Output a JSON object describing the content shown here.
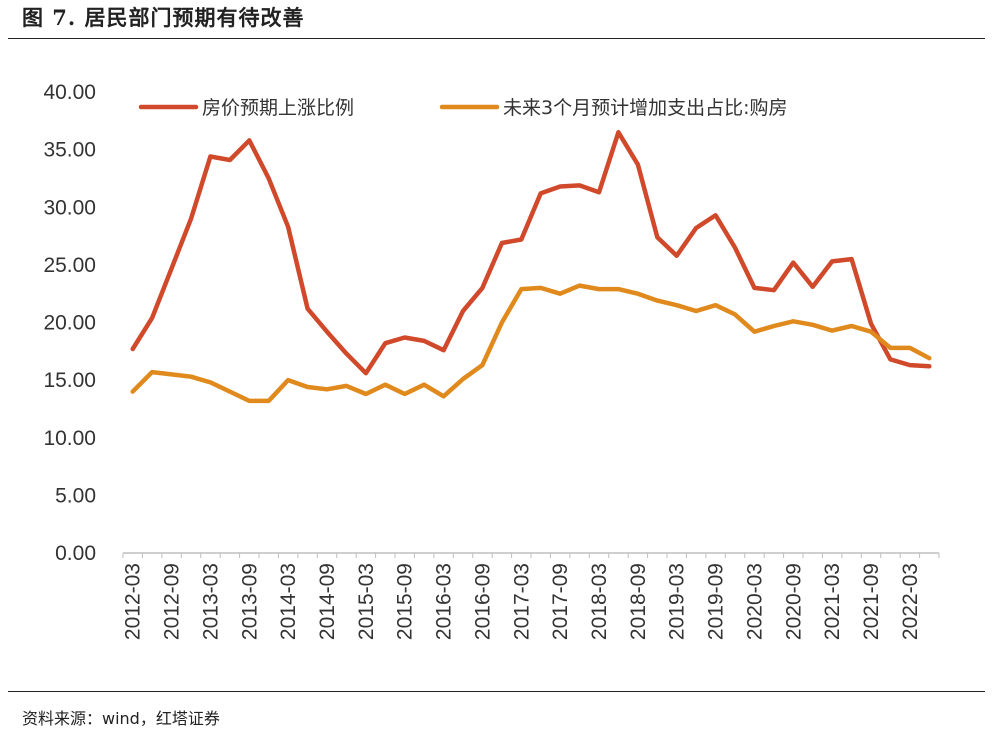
{
  "figure": {
    "title": "图 7. 居民部门预期有待改善",
    "source": "资料来源：wind，红塔证券"
  },
  "chart_data": {
    "type": "line",
    "title": "居民部门预期有待改善",
    "xlabel": "",
    "ylabel": "",
    "ylim": [
      0,
      40
    ],
    "yticks": [
      "0.00",
      "5.00",
      "10.00",
      "15.00",
      "20.00",
      "25.00",
      "30.00",
      "35.00",
      "40.00"
    ],
    "x_tick_labels": [
      "2012-03",
      "2012-09",
      "2013-03",
      "2013-09",
      "2014-03",
      "2014-09",
      "2015-03",
      "2015-09",
      "2016-03",
      "2016-09",
      "2017-03",
      "2017-09",
      "2018-03",
      "2018-09",
      "2019-03",
      "2019-09",
      "2020-03",
      "2020-09",
      "2021-03",
      "2021-09",
      "2022-03"
    ],
    "x": [
      "2012-03",
      "2012-06",
      "2012-09",
      "2012-12",
      "2013-03",
      "2013-06",
      "2013-09",
      "2013-12",
      "2014-03",
      "2014-06",
      "2014-09",
      "2014-12",
      "2015-03",
      "2015-06",
      "2015-09",
      "2015-12",
      "2016-03",
      "2016-06",
      "2016-09",
      "2016-12",
      "2017-03",
      "2017-06",
      "2017-09",
      "2017-12",
      "2018-03",
      "2018-06",
      "2018-09",
      "2018-12",
      "2019-03",
      "2019-06",
      "2019-09",
      "2019-12",
      "2020-03",
      "2020-06",
      "2020-09",
      "2020-12",
      "2021-03",
      "2021-06",
      "2021-09",
      "2021-12",
      "2022-03",
      "2022-06"
    ],
    "legend_position": "top",
    "series": [
      {
        "name": "房价预期上涨比例",
        "color": "#D1492B",
        "values": [
          17.7,
          20.4,
          24.7,
          29.0,
          34.4,
          34.1,
          35.8,
          32.5,
          28.3,
          21.2,
          19.2,
          17.3,
          15.6,
          18.2,
          18.7,
          18.4,
          17.6,
          21.0,
          23.0,
          26.9,
          27.2,
          31.2,
          31.8,
          31.9,
          31.3,
          36.5,
          33.7,
          27.4,
          25.8,
          28.2,
          29.3,
          26.5,
          23.0,
          22.8,
          25.2,
          23.1,
          25.3,
          25.5,
          19.9,
          16.8,
          16.3,
          16.2
        ]
      },
      {
        "name": "未来3个月预计增加支出占比:购房",
        "color": "#E08A1E",
        "values": [
          14.0,
          15.7,
          15.5,
          15.3,
          14.8,
          14.0,
          13.2,
          13.2,
          15.0,
          14.4,
          14.2,
          14.5,
          13.8,
          14.6,
          13.8,
          14.6,
          13.6,
          15.1,
          16.3,
          20.0,
          22.9,
          23.0,
          22.5,
          23.2,
          22.9,
          22.9,
          22.5,
          21.9,
          21.5,
          21.0,
          21.5,
          20.7,
          19.2,
          19.7,
          20.1,
          19.8,
          19.3,
          19.7,
          19.2,
          17.8,
          17.8,
          16.9
        ]
      }
    ]
  }
}
